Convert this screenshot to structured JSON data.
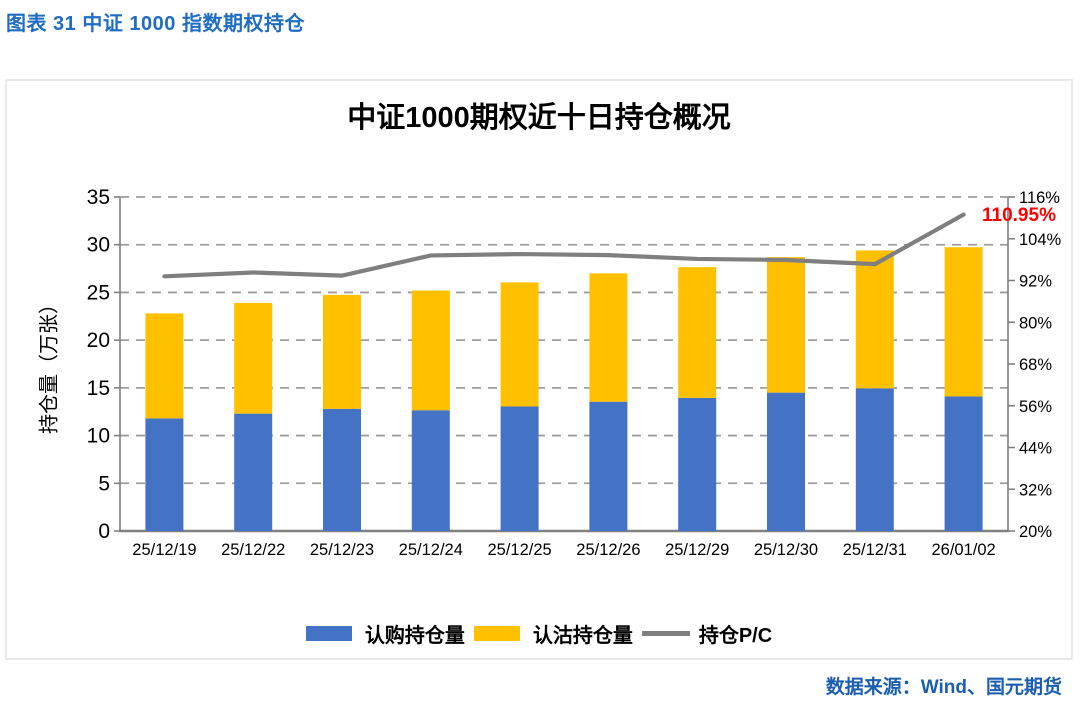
{
  "caption": "图表 31  中证 1000 指数期权持仓",
  "source": "数据来源：Wind、国元期货",
  "legend": {
    "call": "认购持仓量",
    "put": "认沽持仓量",
    "pc": "持仓P/C"
  },
  "colors": {
    "call_bar": "#4472C4",
    "put_bar": "#FFC000",
    "pc_line": "#7F7F7F",
    "grid": "#9E9E9E",
    "axis": "#808080",
    "caption_blue": "#1F6DC2",
    "source_blue": "#1B5EAD",
    "annotation_red": "#FF0000"
  },
  "chart_data": {
    "type": "bar",
    "subtype": "stacked-bars-with-line",
    "title": "中证1000期权近十日持仓概况",
    "ylabel_left": "持仓量（万张）",
    "categories": [
      "25/12/19",
      "25/12/22",
      "25/12/23",
      "25/12/24",
      "25/12/25",
      "25/12/26",
      "25/12/29",
      "25/12/30",
      "25/12/31",
      "26/01/02"
    ],
    "series": [
      {
        "name": "认购持仓量",
        "type": "bar",
        "stacked": true,
        "color": "#4472C4",
        "values": [
          11.8,
          12.3,
          12.8,
          12.65,
          13.05,
          13.55,
          13.95,
          14.5,
          14.95,
          14.1
        ]
      },
      {
        "name": "认沽持仓量",
        "type": "bar",
        "stacked": true,
        "color": "#FFC000",
        "values": [
          11.0,
          11.6,
          11.95,
          12.55,
          13.0,
          13.45,
          13.7,
          14.2,
          14.45,
          15.64
        ]
      },
      {
        "name": "持仓P/C",
        "type": "line",
        "axis": "right",
        "color": "#7F7F7F",
        "values_pct": [
          93.2,
          94.3,
          93.4,
          99.2,
          99.6,
          99.3,
          98.2,
          97.9,
          96.7,
          110.95
        ]
      }
    ],
    "left_axis": {
      "min": 0,
      "max": 35,
      "step": 5,
      "ticks": [
        0,
        5,
        10,
        15,
        20,
        25,
        30,
        35
      ]
    },
    "right_axis": {
      "min": 20,
      "max": 116,
      "step": 12,
      "suffix": "%",
      "ticks": [
        "20%",
        "32%",
        "44%",
        "56%",
        "68%",
        "80%",
        "92%",
        "104%",
        "116%"
      ]
    },
    "grid": "horizontal-dashed",
    "legend_position": "bottom",
    "annotation": {
      "text": "110.95%",
      "color": "#FF0000",
      "target": "last line point"
    }
  }
}
